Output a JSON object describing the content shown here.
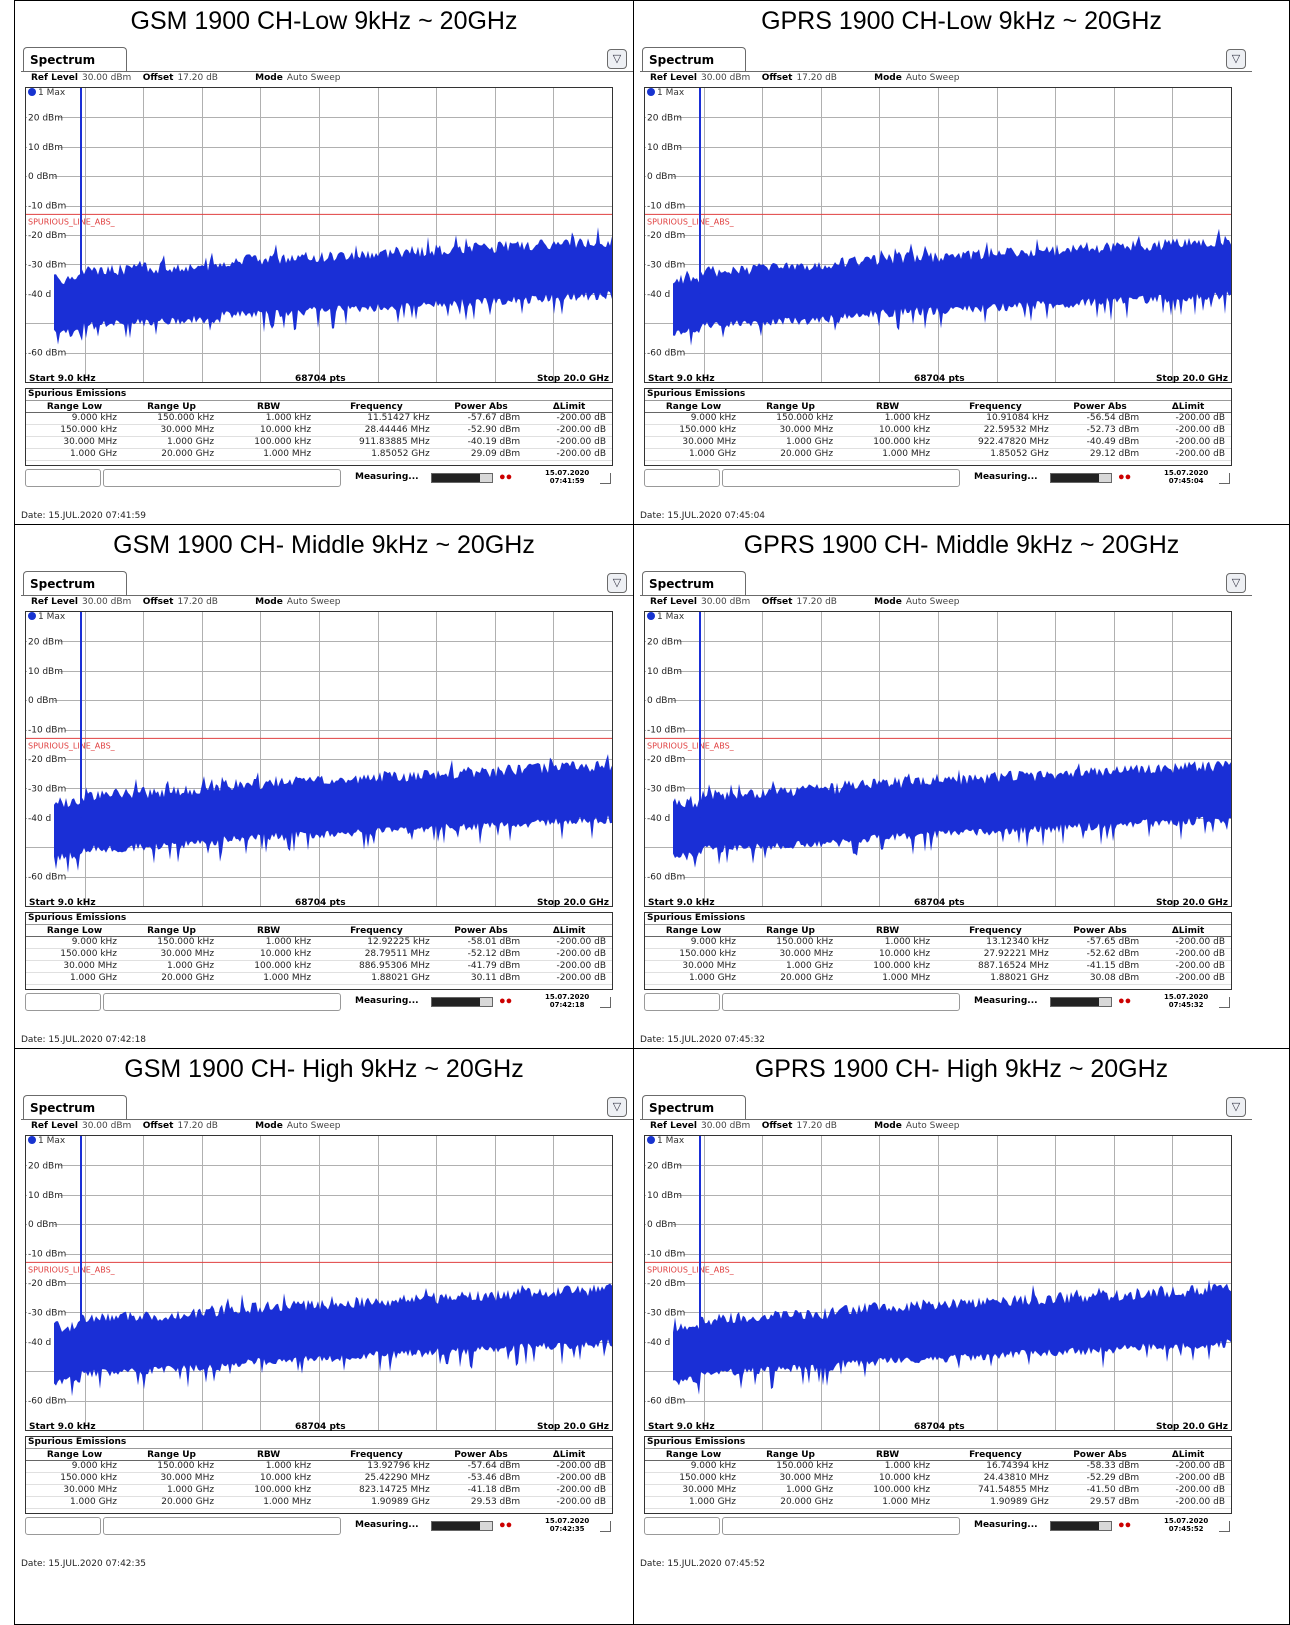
{
  "common": {
    "tab_label": "Spectrum",
    "ref_level_label": "Ref Level",
    "ref_level_value": "30.00 dBm",
    "offset_label": "Offset",
    "offset_value": "17.20 dB",
    "mode_label": "Mode",
    "mode_value": "Auto Sweep",
    "trace_label": "1 Max",
    "limit_line_label": "SPURIOUS_LINE_ABS_",
    "y_ticks": [
      "20 dBm",
      "10 dBm",
      "0 dBm",
      "-10 dBm",
      "-20 dBm",
      "-30 dBm",
      "-40 d",
      "-60 dBm"
    ],
    "start_label": "Start 9.0 kHz",
    "points_label": "68704 pts",
    "stop_label": "Stop 20.0 GHz",
    "spurious_title": "Spurious Emissions",
    "columns": [
      "Range Low",
      "Range Up",
      "RBW",
      "Frequency",
      "Power Abs",
      "ΔLimit"
    ],
    "status_text": "Measuring...",
    "menu_icon": "menu-icon",
    "colors": {
      "trace": "#1a2fd6",
      "limit": "#e04040",
      "grid": "#b0b0b0"
    }
  },
  "panels": [
    {
      "title": "GSM 1900 CH-Low 9kHz ~ 20GHz",
      "rows": [
        [
          "9.000 kHz",
          "150.000 kHz",
          "1.000 kHz",
          "11.51427 kHz",
          "-57.67 dBm",
          "-200.00 dB"
        ],
        [
          "150.000 kHz",
          "30.000 MHz",
          "10.000 kHz",
          "28.44446 MHz",
          "-52.90 dBm",
          "-200.00 dB"
        ],
        [
          "30.000 MHz",
          "1.000 GHz",
          "100.000 kHz",
          "911.83885 MHz",
          "-40.19 dBm",
          "-200.00 dB"
        ],
        [
          "1.000 GHz",
          "20.000 GHz",
          "1.000 MHz",
          "1.85052 GHz",
          "29.09 dBm",
          "-200.00 dB"
        ]
      ],
      "status_date": "15.07.2020",
      "status_time": "07:41:59",
      "date_line": "Date: 15.JUL.2020 07:41:59"
    },
    {
      "title": "GPRS 1900 CH-Low 9kHz ~ 20GHz",
      "rows": [
        [
          "9.000 kHz",
          "150.000 kHz",
          "1.000 kHz",
          "10.91084 kHz",
          "-56.54 dBm",
          "-200.00 dB"
        ],
        [
          "150.000 kHz",
          "30.000 MHz",
          "10.000 kHz",
          "22.59532 MHz",
          "-52.73 dBm",
          "-200.00 dB"
        ],
        [
          "30.000 MHz",
          "1.000 GHz",
          "100.000 kHz",
          "922.47820 MHz",
          "-40.49 dBm",
          "-200.00 dB"
        ],
        [
          "1.000 GHz",
          "20.000 GHz",
          "1.000 MHz",
          "1.85052 GHz",
          "29.12 dBm",
          "-200.00 dB"
        ]
      ],
      "status_date": "15.07.2020",
      "status_time": "07:45:04",
      "date_line": "Date: 15.JUL.2020 07:45:04"
    },
    {
      "title": "GSM 1900 CH- Middle 9kHz ~ 20GHz",
      "rows": [
        [
          "9.000 kHz",
          "150.000 kHz",
          "1.000 kHz",
          "12.92225 kHz",
          "-58.01 dBm",
          "-200.00 dB"
        ],
        [
          "150.000 kHz",
          "30.000 MHz",
          "10.000 kHz",
          "28.79511 MHz",
          "-52.12 dBm",
          "-200.00 dB"
        ],
        [
          "30.000 MHz",
          "1.000 GHz",
          "100.000 kHz",
          "886.95306 MHz",
          "-41.79 dBm",
          "-200.00 dB"
        ],
        [
          "1.000 GHz",
          "20.000 GHz",
          "1.000 MHz",
          "1.88021 GHz",
          "30.11 dBm",
          "-200.00 dB"
        ]
      ],
      "status_date": "15.07.2020",
      "status_time": "07:42:18",
      "date_line": "Date: 15.JUL.2020 07:42:18"
    },
    {
      "title": "GPRS 1900 CH- Middle 9kHz ~ 20GHz",
      "rows": [
        [
          "9.000 kHz",
          "150.000 kHz",
          "1.000 kHz",
          "13.12340 kHz",
          "-57.65 dBm",
          "-200.00 dB"
        ],
        [
          "150.000 kHz",
          "30.000 MHz",
          "10.000 kHz",
          "27.92221 MHz",
          "-52.62 dBm",
          "-200.00 dB"
        ],
        [
          "30.000 MHz",
          "1.000 GHz",
          "100.000 kHz",
          "887.16524 MHz",
          "-41.15 dBm",
          "-200.00 dB"
        ],
        [
          "1.000 GHz",
          "20.000 GHz",
          "1.000 MHz",
          "1.88021 GHz",
          "30.08 dBm",
          "-200.00 dB"
        ]
      ],
      "status_date": "15.07.2020",
      "status_time": "07:45:32",
      "date_line": "Date: 15.JUL.2020 07:45:32"
    },
    {
      "title": "GSM 1900 CH- High 9kHz ~ 20GHz",
      "rows": [
        [
          "9.000 kHz",
          "150.000 kHz",
          "1.000 kHz",
          "13.92796 kHz",
          "-57.64 dBm",
          "-200.00 dB"
        ],
        [
          "150.000 kHz",
          "30.000 MHz",
          "10.000 kHz",
          "25.42290 MHz",
          "-53.46 dBm",
          "-200.00 dB"
        ],
        [
          "30.000 MHz",
          "1.000 GHz",
          "100.000 kHz",
          "823.14725 MHz",
          "-41.18 dBm",
          "-200.00 dB"
        ],
        [
          "1.000 GHz",
          "20.000 GHz",
          "1.000 MHz",
          "1.90989 GHz",
          "29.53 dBm",
          "-200.00 dB"
        ]
      ],
      "status_date": "15.07.2020",
      "status_time": "07:42:35",
      "date_line": "Date: 15.JUL.2020 07:42:35"
    },
    {
      "title": "GPRS 1900 CH- High 9kHz ~ 20GHz",
      "rows": [
        [
          "9.000 kHz",
          "150.000 kHz",
          "1.000 kHz",
          "16.74394 kHz",
          "-58.33 dBm",
          "-200.00 dB"
        ],
        [
          "150.000 kHz",
          "30.000 MHz",
          "10.000 kHz",
          "24.43810 MHz",
          "-52.29 dBm",
          "-200.00 dB"
        ],
        [
          "30.000 MHz",
          "1.000 GHz",
          "100.000 kHz",
          "741.54855 MHz",
          "-41.50 dBm",
          "-200.00 dB"
        ],
        [
          "1.000 GHz",
          "20.000 GHz",
          "1.000 MHz",
          "1.90989 GHz",
          "29.57 dBm",
          "-200.00 dB"
        ]
      ],
      "status_date": "15.07.2020",
      "status_time": "07:45:52",
      "date_line": "Date: 15.JUL.2020 07:45:52"
    }
  ]
}
